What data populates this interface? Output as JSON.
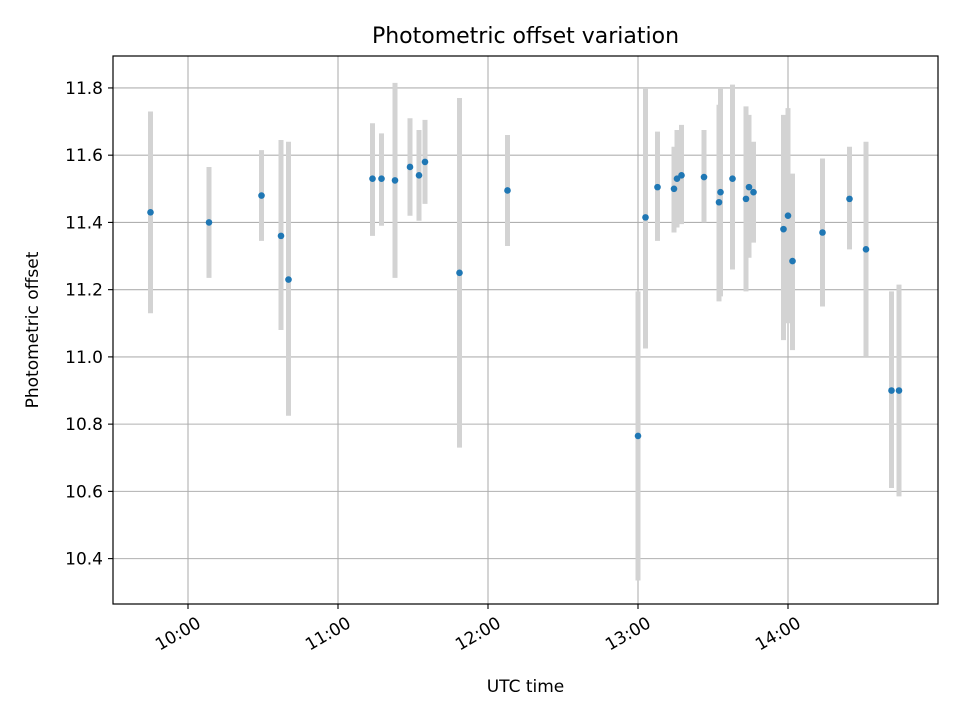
{
  "chart_data": {
    "type": "scatter",
    "title": "Photometric offset variation",
    "xlabel": "UTC time",
    "ylabel": "Photometric offset",
    "grid": true,
    "xlim_hours": [
      9.5,
      15.0
    ],
    "ylim": [
      10.265,
      11.895
    ],
    "x_ticks": [
      {
        "hour": 10,
        "label": "10:00"
      },
      {
        "hour": 11,
        "label": "11:00"
      },
      {
        "hour": 12,
        "label": "12:00"
      },
      {
        "hour": 13,
        "label": "13:00"
      },
      {
        "hour": 14,
        "label": "14:00"
      }
    ],
    "y_ticks": [
      10.4,
      10.6,
      10.8,
      11.0,
      11.2,
      11.4,
      11.6,
      11.8
    ],
    "y_tick_labels": [
      "10.4",
      "10.6",
      "10.8",
      "11.0",
      "11.2",
      "11.4",
      "11.6",
      "11.8"
    ],
    "x_time_hours": [
      9.75,
      10.14,
      10.49,
      10.62,
      10.67,
      11.23,
      11.29,
      11.38,
      11.48,
      11.54,
      11.58,
      11.81,
      12.13,
      13.0,
      13.05,
      13.13,
      13.24,
      13.26,
      13.29,
      13.44,
      13.54,
      13.55,
      13.63,
      13.72,
      13.74,
      13.77,
      13.97,
      14.0,
      14.03,
      14.23,
      14.41,
      14.52,
      14.69,
      14.74
    ],
    "y_offset": [
      11.43,
      11.4,
      11.48,
      11.36,
      11.23,
      11.53,
      11.53,
      11.525,
      11.565,
      11.54,
      11.58,
      11.25,
      11.495,
      10.765,
      11.415,
      11.505,
      11.5,
      11.53,
      11.54,
      11.535,
      11.46,
      11.49,
      11.53,
      11.47,
      11.505,
      11.49,
      11.38,
      11.42,
      11.285,
      11.37,
      11.47,
      11.32,
      10.9,
      10.9
    ],
    "err_low": [
      11.13,
      11.235,
      11.345,
      11.08,
      10.825,
      11.36,
      11.39,
      11.235,
      11.42,
      11.405,
      11.455,
      10.73,
      11.33,
      10.335,
      11.025,
      11.345,
      11.37,
      11.385,
      11.395,
      11.4,
      11.165,
      11.18,
      11.26,
      11.195,
      11.295,
      11.34,
      11.05,
      11.1,
      11.02,
      11.15,
      11.32,
      11.0,
      10.61,
      10.585
    ],
    "err_high": [
      11.73,
      11.565,
      11.615,
      11.645,
      11.64,
      11.695,
      11.665,
      11.815,
      11.71,
      11.675,
      11.705,
      11.77,
      11.66,
      11.195,
      11.8,
      11.67,
      11.625,
      11.675,
      11.69,
      11.675,
      11.75,
      11.8,
      11.81,
      11.745,
      11.72,
      11.64,
      11.72,
      11.74,
      11.545,
      11.59,
      11.625,
      11.64,
      11.195,
      11.215
    ]
  }
}
